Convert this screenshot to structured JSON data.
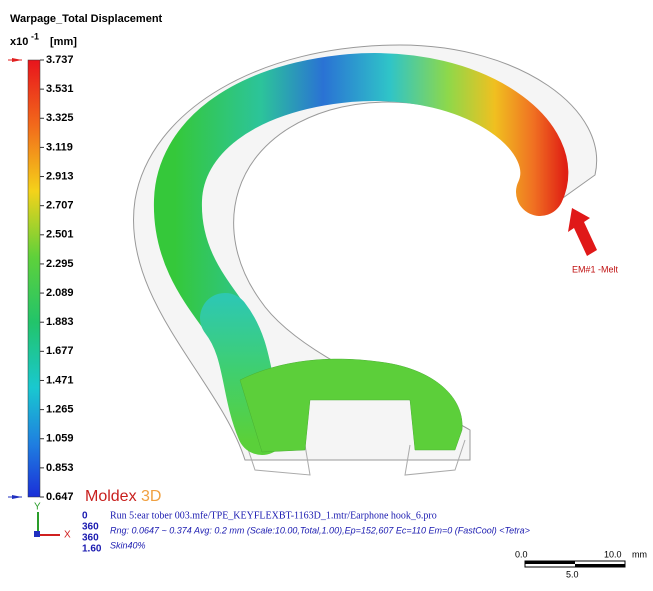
{
  "header": {
    "title": "Warpage_Total Displacement",
    "unit_base": "x10",
    "unit_exp": "-1",
    "unit": "[mm]"
  },
  "legend": {
    "labels": [
      "3.737",
      "3.531",
      "3.325",
      "3.119",
      "2.913",
      "2.707",
      "2.501",
      "2.295",
      "2.089",
      "1.883",
      "1.677",
      "1.471",
      "1.265",
      "1.059",
      "0.853",
      "0.647"
    ]
  },
  "logo": {
    "main": "Moldex",
    "suffix": "3D"
  },
  "info": {
    "numbers": [
      "0",
      "360",
      "360",
      "1.60"
    ],
    "lines": [
      "Run 5:ear tober 003.mfe/TPE_KEYFLEXBT-1163D_1.mtr/Earphone hook_6.pro",
      "Rng: 0.0647 ~ 0.374  Avg: 0.2 mm (Scale:10.00,Total,1.00),Ep=152,607 Ec=110 Em=0 (FastCool) <Tetra>",
      "Skin40%"
    ]
  },
  "annotation": "EM#1 -Melt",
  "axes": {
    "y": "Y",
    "x": "X"
  },
  "scale_bar": {
    "start": "0.0",
    "end": "10.0",
    "unit": "mm",
    "mid": "5.0"
  }
}
